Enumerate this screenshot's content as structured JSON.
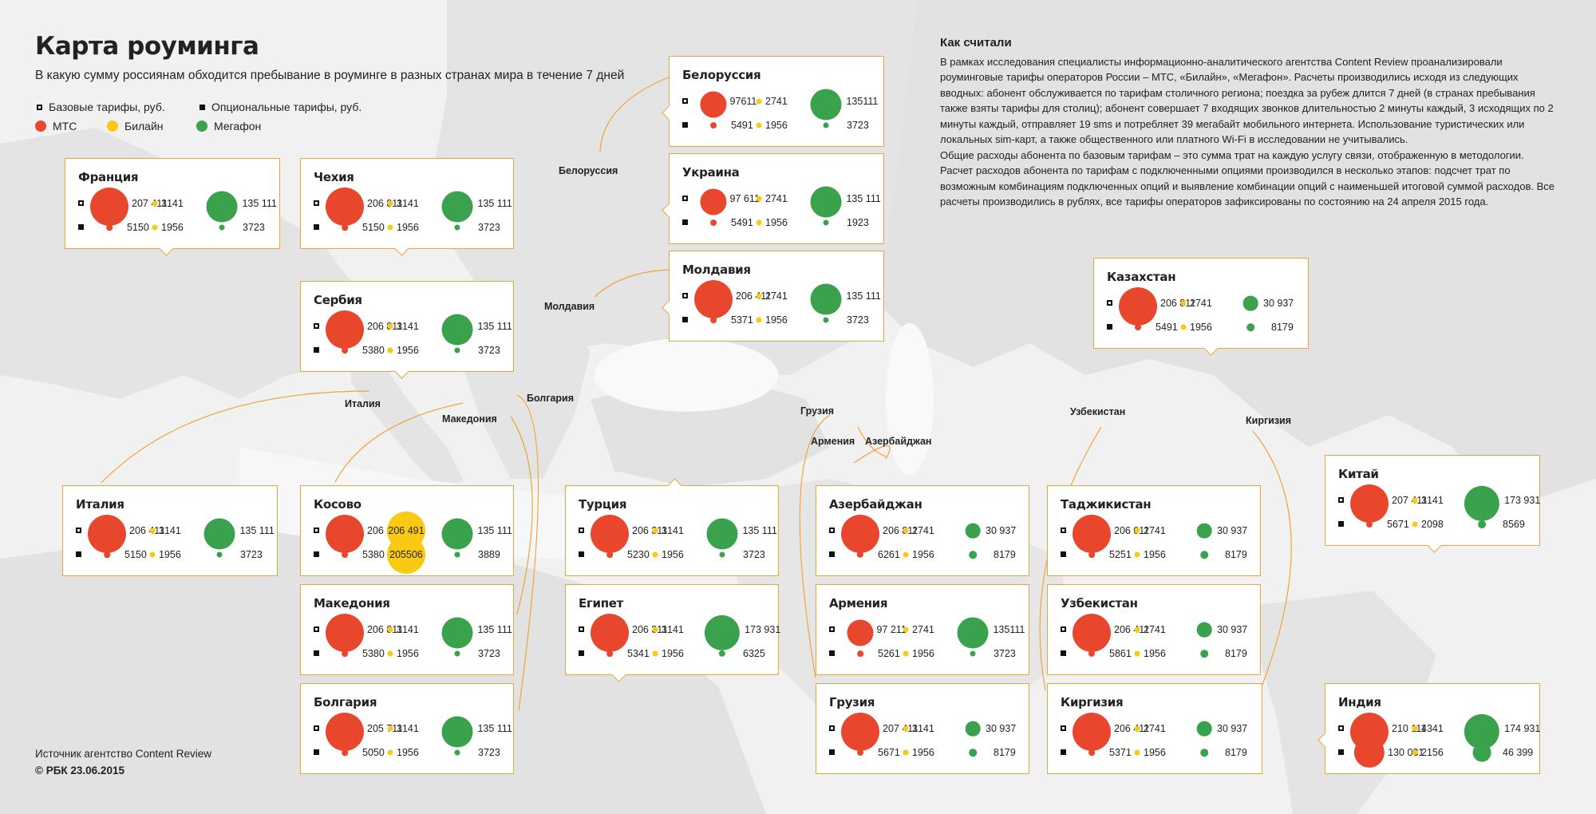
{
  "title": "Карта роуминга",
  "subtitle": "В какую сумму россиянам обходится пребывание в роуминге в разных странах мира в течение 7 дней",
  "legend": {
    "base": "Базовые тарифы, руб.",
    "optional": "Опциональные тарифы, руб.",
    "mts": "МТС",
    "beeline": "Билайн",
    "megafon": "Мегафон"
  },
  "colors": {
    "mts": "#e8472d",
    "beeline": "#f9c913",
    "megafon": "#3aa24d",
    "accent": "#f0a33a"
  },
  "methodology": {
    "heading": "Как считали",
    "p1": "В рамках исследования специалисты информационно-аналитического агентства Content Review проанализировали роуминговые тарифы операторов России – МТС, «Билайн», «Мегафон». Расчеты производились исходя из следующих вводных: абонент обслуживается по тарифам столичного региона; поездка за рубеж длится 7 дней (в странах пребывания также взяты тарифы для столиц); абонент совершает 7 входящих звонков длительностью 2 минуты каждый, 3 исходящих по 2 минуты каждый, отправляет 19 sms и потребляет 39 мегабайт мобильного интернета. Использование туристических или локальных sim-карт, а также общественного или платного Wi-Fi в исследовании не учитывались.",
    "p2": "Общие расходы абонента по базовым тарифам – это сумма трат на каждую услугу связи, отображенную в методологии. Расчет расходов абонента по тарифам с подключенными опциями производился в несколько этапов: подсчет трат по возможным комбинациям подключенных опций и выявление комбинации опций с наименьшей итоговой суммой расходов. Все расчеты производились в рублях, все тарифы операторов зафиксированы по состоянию на 24 апреля 2015 года."
  },
  "source": {
    "line1": "Источник агентство Content Review",
    "line2": "© РБК 23.06.2015"
  },
  "map_labels": [
    "Белоруссия",
    "Молдавия",
    "Италия",
    "Македония",
    "Болгария",
    "Грузия",
    "Армения",
    "Азербайджан",
    "Узбекистан",
    "Киргизия"
  ],
  "countries": [
    {
      "name": "Франция",
      "base": {
        "mts": "207 411",
        "beeline": "3141",
        "megafon": "135 111"
      },
      "optional": {
        "mts": "5150",
        "beeline": "1956",
        "megafon": "3723"
      }
    },
    {
      "name": "Чехия",
      "base": {
        "mts": "206 811",
        "beeline": "3141",
        "megafon": "135 111"
      },
      "optional": {
        "mts": "5150",
        "beeline": "1956",
        "megafon": "3723"
      }
    },
    {
      "name": "Сербия",
      "base": {
        "mts": "206 811",
        "beeline": "3141",
        "megafon": "135 111"
      },
      "optional": {
        "mts": "5380",
        "beeline": "1956",
        "megafon": "3723"
      }
    },
    {
      "name": "Белоруссия",
      "base": {
        "mts": "97611",
        "beeline": "2741",
        "megafon": "135111"
      },
      "optional": {
        "mts": "5491",
        "beeline": "1956",
        "megafon": "3723"
      }
    },
    {
      "name": "Украина",
      "base": {
        "mts": "97 611",
        "beeline": "2741",
        "megafon": "135 111"
      },
      "optional": {
        "mts": "5491",
        "beeline": "1956",
        "megafon": "1923"
      }
    },
    {
      "name": "Молдавия",
      "base": {
        "mts": "206 411",
        "beeline": "2741",
        "megafon": "135 111"
      },
      "optional": {
        "mts": "5371",
        "beeline": "1956",
        "megafon": "3723"
      }
    },
    {
      "name": "Казахстан",
      "base": {
        "mts": "206 811",
        "beeline": "2741",
        "megafon": "30 937"
      },
      "optional": {
        "mts": "5491",
        "beeline": "1956",
        "megafon": "8179"
      }
    },
    {
      "name": "Италия",
      "base": {
        "mts": "206 411",
        "beeline": "3141",
        "megafon": "135 111"
      },
      "optional": {
        "mts": "5150",
        "beeline": "1956",
        "megafon": "3723"
      }
    },
    {
      "name": "Косово",
      "base": {
        "mts": "206 811",
        "beeline": "206 491",
        "megafon": "135 111"
      },
      "optional": {
        "mts": "5380",
        "beeline": "205506",
        "megafon": "3889"
      }
    },
    {
      "name": "Македония",
      "base": {
        "mts": "206 811",
        "beeline": "3141",
        "megafon": "135 111"
      },
      "optional": {
        "mts": "5380",
        "beeline": "1956",
        "megafon": "3723"
      }
    },
    {
      "name": "Болгария",
      "base": {
        "mts": "205 711",
        "beeline": "3141",
        "megafon": "135 111"
      },
      "optional": {
        "mts": "5050",
        "beeline": "1956",
        "megafon": "3723"
      }
    },
    {
      "name": "Турция",
      "base": {
        "mts": "206 311",
        "beeline": "3141",
        "megafon": "135 111"
      },
      "optional": {
        "mts": "5230",
        "beeline": "1956",
        "megafon": "3723"
      }
    },
    {
      "name": "Египет",
      "base": {
        "mts": "206 311",
        "beeline": "3141",
        "megafon": "173 931"
      },
      "optional": {
        "mts": "5341",
        "beeline": "1956",
        "megafon": "6325"
      }
    },
    {
      "name": "Азербайджан",
      "base": {
        "mts": "206 811",
        "beeline": "2741",
        "megafon": "30 937"
      },
      "optional": {
        "mts": "6261",
        "beeline": "1956",
        "megafon": "8179"
      }
    },
    {
      "name": "Армения",
      "base": {
        "mts": "97 211",
        "beeline": "2741",
        "megafon": "135111"
      },
      "optional": {
        "mts": "5261",
        "beeline": "1956",
        "megafon": "3723"
      }
    },
    {
      "name": "Грузия",
      "base": {
        "mts": "207 411",
        "beeline": "3141",
        "megafon": "30 937"
      },
      "optional": {
        "mts": "5671",
        "beeline": "1956",
        "megafon": "8179"
      }
    },
    {
      "name": "Таджикистан",
      "base": {
        "mts": "206 011",
        "beeline": "2741",
        "megafon": "30 937"
      },
      "optional": {
        "mts": "5251",
        "beeline": "1956",
        "megafon": "8179"
      }
    },
    {
      "name": "Узбекистан",
      "base": {
        "mts": "206 411",
        "beeline": "2741",
        "megafon": "30 937"
      },
      "optional": {
        "mts": "5861",
        "beeline": "1956",
        "megafon": "8179"
      }
    },
    {
      "name": "Киргизия",
      "base": {
        "mts": "206 411",
        "beeline": "2741",
        "megafon": "30 937"
      },
      "optional": {
        "mts": "5371",
        "beeline": "1956",
        "megafon": "8179"
      }
    },
    {
      "name": "Китай",
      "base": {
        "mts": "207 411",
        "beeline": "3141",
        "megafon": "173 931"
      },
      "optional": {
        "mts": "5671",
        "beeline": "2098",
        "megafon": "8569"
      }
    },
    {
      "name": "Индия",
      "base": {
        "mts": "210 111",
        "beeline": "4341",
        "megafon": "174 931"
      },
      "optional": {
        "mts": "130 031",
        "beeline": "2156",
        "megafon": "46 399"
      }
    }
  ]
}
